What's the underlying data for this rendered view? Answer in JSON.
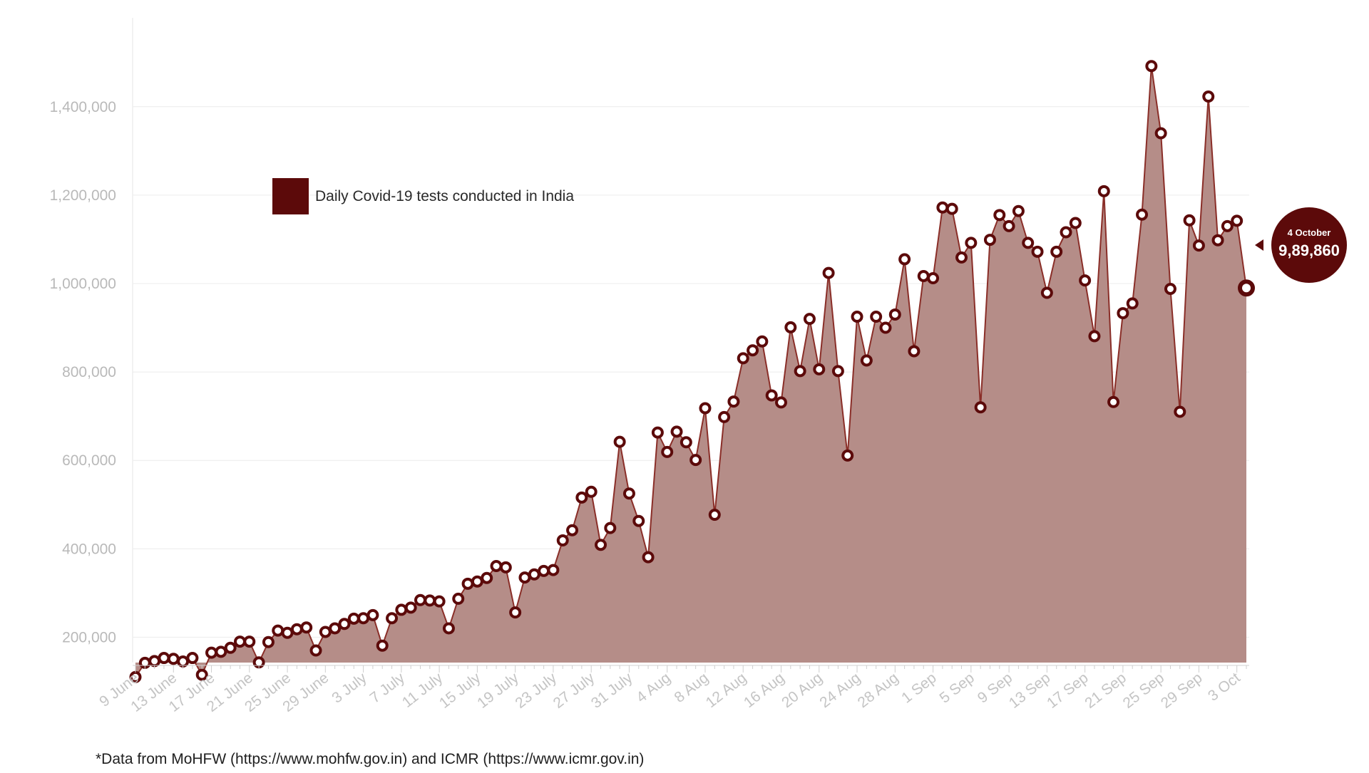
{
  "chart_data": {
    "type": "area",
    "title": "",
    "xlabel": "",
    "ylabel": "",
    "ylim": [
      40000,
      1500000
    ],
    "y_ticks": [
      200000,
      400000,
      600000,
      800000,
      1000000,
      1200000,
      1400000
    ],
    "y_tick_labels": [
      "200,000",
      "400,000",
      "600,000",
      "800,000",
      "1,000,000",
      "1,200,000",
      "1,400,000"
    ],
    "x_start": "9 June",
    "x_tick_labels": [
      "9 June",
      "13 June",
      "17 June",
      "21 June",
      "25 June",
      "29 June",
      "3 July",
      "7 July",
      "11 July",
      "15 July",
      "19 July",
      "23 July",
      "27 July",
      "31 July",
      "4 Aug",
      "8 Aug",
      "12 Aug",
      "16 Aug",
      "20 Aug",
      "24 Aug",
      "28 Aug",
      "1 Sep",
      "5 Sep",
      "9 Sep",
      "13 Sep",
      "17 Sep",
      "21 Sep",
      "25 Sep",
      "29 Sep",
      "3 Oct"
    ],
    "grid": true,
    "legend_position": "top-left",
    "series": [
      {
        "name": "Daily Covid-19 tests conducted in India",
        "color": "#5c0a0a",
        "fill": "#b58d88",
        "values": [
          110000,
          142000,
          146000,
          153000,
          151000,
          145000,
          153000,
          115000,
          165000,
          167000,
          176000,
          190000,
          190000,
          143000,
          189000,
          215000,
          210000,
          218000,
          222000,
          170000,
          212000,
          220000,
          230000,
          242000,
          243000,
          250000,
          181000,
          243000,
          262000,
          267000,
          284000,
          283000,
          281000,
          220000,
          287000,
          321000,
          326000,
          334000,
          361000,
          358000,
          256000,
          335000,
          342000,
          350000,
          352000,
          419000,
          442000,
          516000,
          529000,
          409000,
          447000,
          642000,
          525000,
          463000,
          381000,
          663000,
          619000,
          665000,
          641000,
          601000,
          718000,
          477000,
          698000,
          733000,
          831000,
          849000,
          869000,
          747000,
          731000,
          901000,
          802000,
          920000,
          806000,
          1024000,
          802000,
          611000,
          925000,
          826000,
          925000,
          900000,
          930000,
          1055000,
          847000,
          1017000,
          1012000,
          1172000,
          1169000,
          1059000,
          1092000,
          720000,
          1099000,
          1155000,
          1130000,
          1164000,
          1092000,
          1072000,
          979000,
          1072000,
          1116000,
          1137000,
          1007000,
          881000,
          1209000,
          732000,
          933000,
          955000,
          1156000,
          1492000,
          1340000,
          988000,
          710000,
          1143000,
          1086000,
          1423000,
          1098000,
          1130000,
          1142000,
          989860
        ]
      }
    ],
    "callout": {
      "date": "4 October",
      "value_label": "9,89,860",
      "value": 989860
    }
  },
  "legend": {
    "label": "Daily Covid-19 tests conducted in India"
  },
  "footnote": "*Data from MoHFW (https://www.mohfw.gov.in) and ICMR (https://www.icmr.gov.in)"
}
